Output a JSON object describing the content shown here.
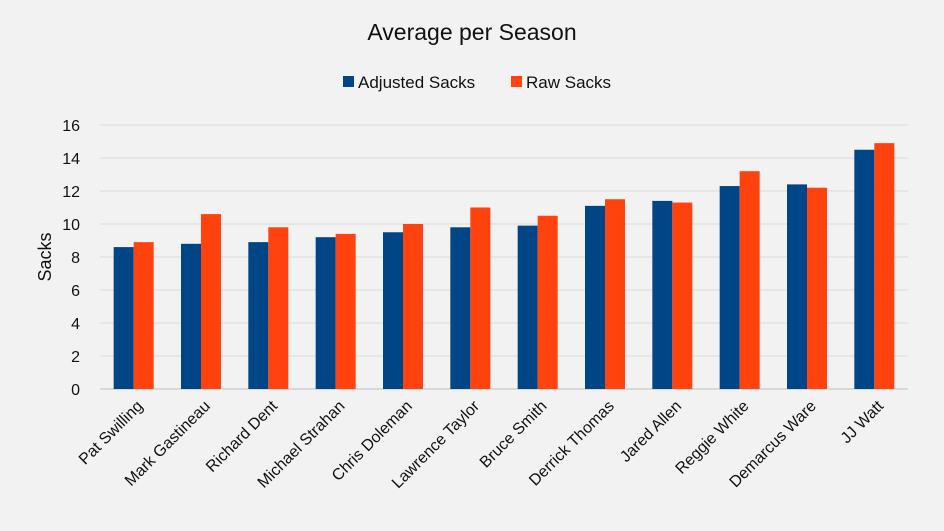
{
  "colors": {
    "background": "#f2f2f2",
    "gridline": "#d9d9d9",
    "axis": "#bfbfbf",
    "text": "#111111"
  },
  "chart_data": {
    "type": "bar",
    "title": "Average per Season",
    "xlabel": "",
    "ylabel": "Sacks",
    "ylim": [
      0,
      16
    ],
    "yticks": [
      0,
      2,
      4,
      6,
      8,
      10,
      12,
      14,
      16
    ],
    "grid": true,
    "legend_position": "top",
    "categories": [
      "Pat Swilling",
      "Mark Gastineau",
      "Richard Dent",
      "Michael Strahan",
      "Chris Doleman",
      "Lawrence Taylor",
      "Bruce Smith",
      "Derrick Thomas",
      "Jared Allen",
      "Reggie White",
      "Demarcus Ware",
      "JJ Watt"
    ],
    "series": [
      {
        "name": "Adjusted Sacks",
        "color": "#004586",
        "values": [
          8.6,
          8.8,
          8.9,
          9.2,
          9.5,
          9.8,
          9.9,
          11.1,
          11.4,
          12.3,
          12.4,
          14.5
        ]
      },
      {
        "name": "Raw Sacks",
        "color": "#ff420e",
        "values": [
          8.9,
          10.6,
          9.8,
          9.4,
          10.0,
          11.0,
          10.5,
          11.5,
          11.3,
          13.2,
          12.2,
          14.9
        ]
      }
    ]
  }
}
